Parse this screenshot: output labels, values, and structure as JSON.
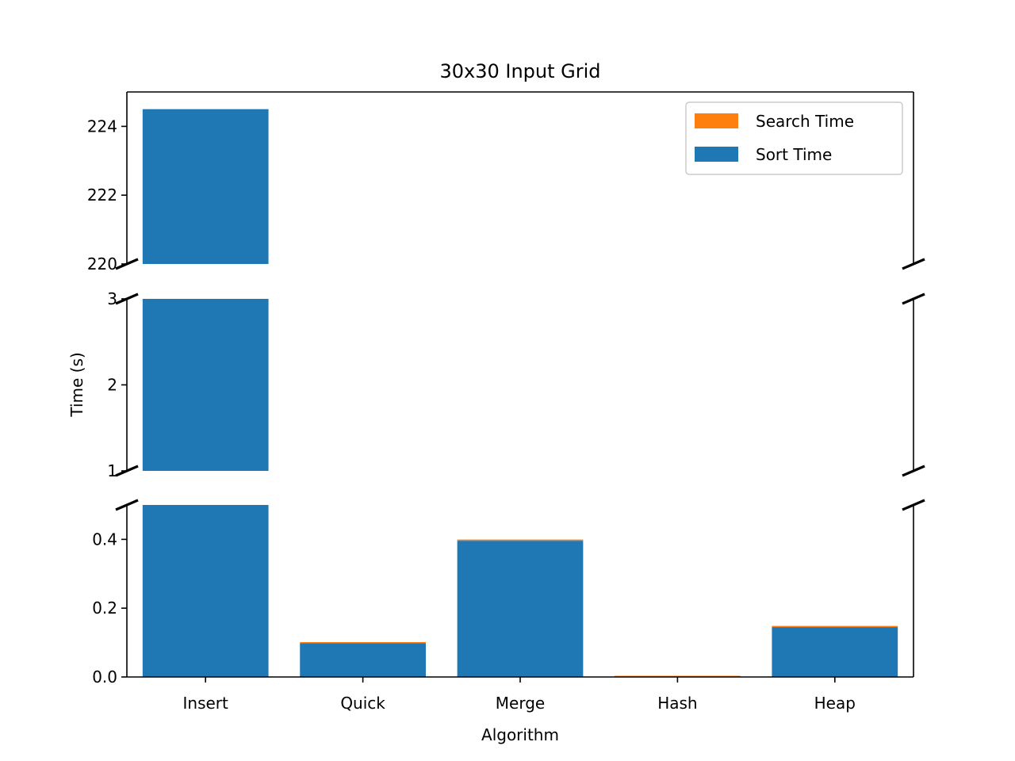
{
  "chart_data": {
    "type": "bar",
    "stacked": true,
    "broken_y_axis": true,
    "title": "30x30 Input Grid",
    "xlabel": "Algorithm",
    "ylabel": "Time (s)",
    "categories": [
      "Insert",
      "Quick",
      "Merge",
      "Hash",
      "Heap"
    ],
    "series": [
      {
        "name": "Sort Time",
        "color": "#1f77b4",
        "values": [
          224.5,
          0.098,
          0.396,
          0.0,
          0.145
        ]
      },
      {
        "name": "Search Time",
        "color": "#ff7f0e",
        "values": [
          0.0,
          0.002,
          0.003,
          0.003,
          0.003
        ]
      }
    ],
    "panels": [
      {
        "ylim": [
          220,
          225
        ],
        "ticks": [
          220,
          222,
          224
        ],
        "tick_labels": [
          "220",
          "222",
          "224"
        ]
      },
      {
        "ylim": [
          1,
          3
        ],
        "ticks": [
          1,
          2,
          3
        ],
        "tick_labels": [
          "1",
          "2",
          "3"
        ]
      },
      {
        "ylim": [
          0,
          0.5
        ],
        "ticks": [
          0.0,
          0.2,
          0.4
        ],
        "tick_labels": [
          "0.0",
          "0.2",
          "0.4"
        ]
      }
    ],
    "legend": {
      "position": "top-right",
      "order": [
        "Search Time",
        "Sort Time"
      ]
    },
    "grid": false
  }
}
